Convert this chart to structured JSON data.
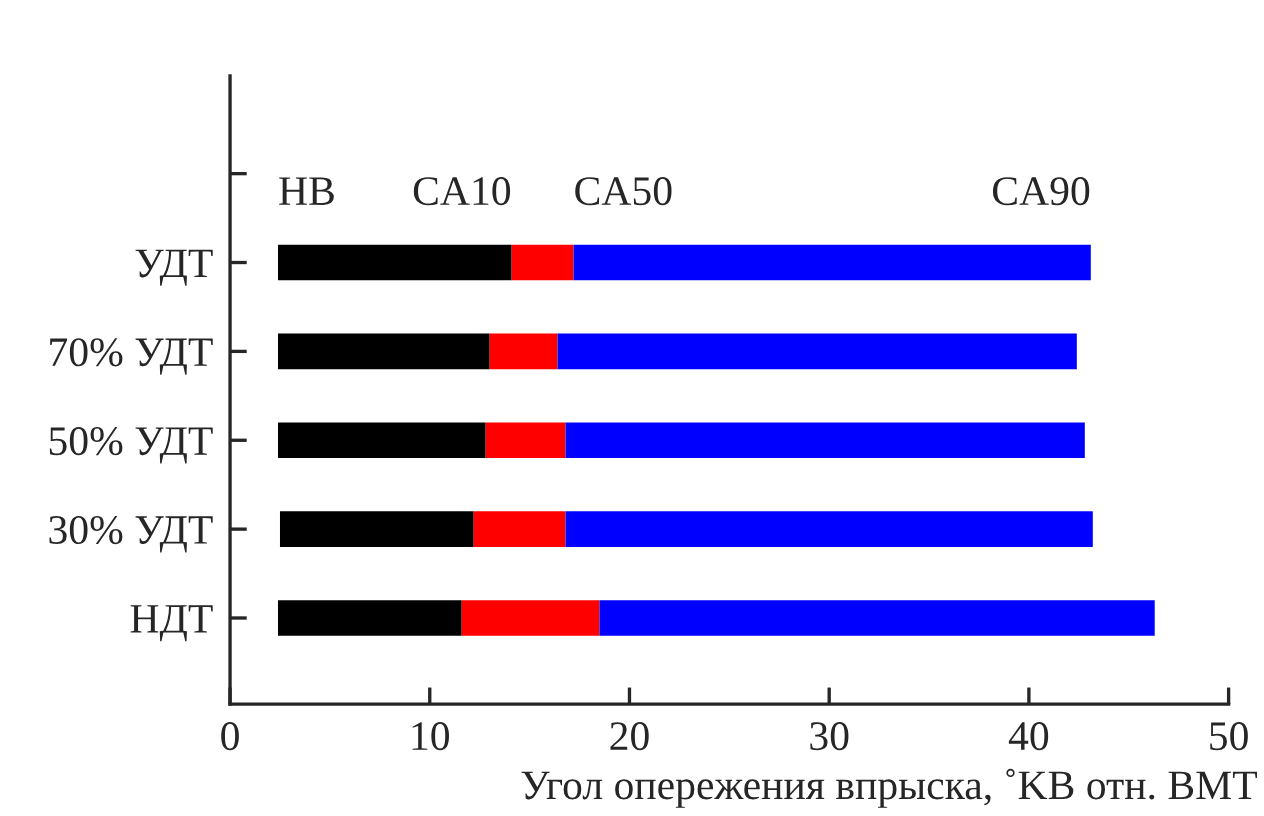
{
  "chart_data": {
    "type": "bar",
    "orientation": "horizontal",
    "xlabel": "Угол опережения впрыска, ˚KB отн. ВМТ",
    "categories": [
      null,
      "УДТ",
      "70% УДТ",
      "50% УДТ",
      "30% УДТ",
      "НДТ"
    ],
    "series": [
      {
        "color": "#000000",
        "base": [
          null,
          2.4,
          2.4,
          2.4,
          2.5,
          2.4
        ],
        "values": [
          null,
          11.7,
          10.6,
          10.4,
          9.7,
          9.2
        ]
      },
      {
        "color": "#ff0000",
        "base": [
          null,
          14.1,
          13.0,
          12.8,
          12.2,
          11.6
        ],
        "values": [
          null,
          3.1,
          3.4,
          4.0,
          4.6,
          6.9
        ]
      },
      {
        "color": "#0000ff",
        "base": [
          null,
          17.2,
          16.4,
          16.8,
          16.8,
          18.5
        ],
        "values": [
          null,
          25.9,
          26.0,
          26.0,
          26.4,
          27.8
        ]
      }
    ],
    "annotations": [
      "НВ",
      "CA10",
      "CA50",
      "CA90"
    ],
    "xlim": [
      0,
      50
    ],
    "xticks": [
      0,
      10,
      20,
      30,
      40,
      50
    ],
    "grid": false,
    "legend": false
  }
}
